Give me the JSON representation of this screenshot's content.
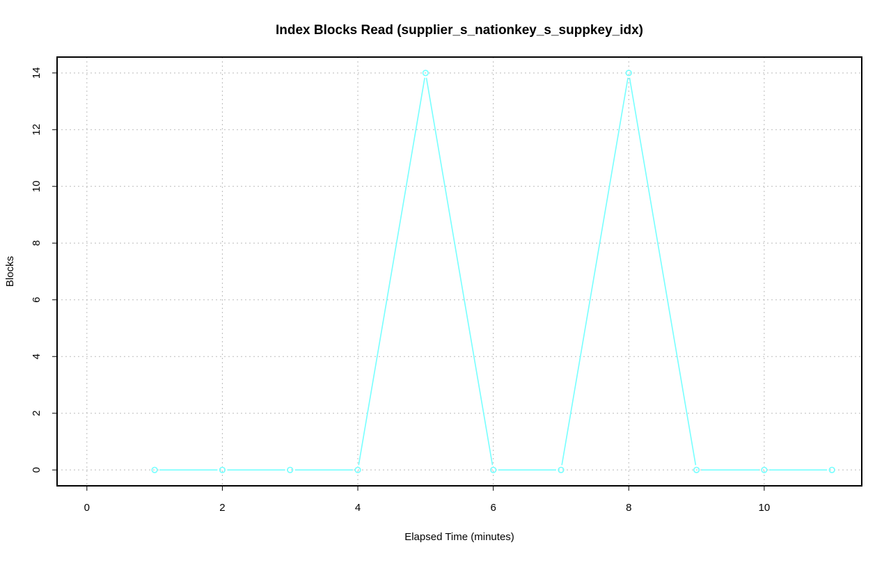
{
  "chart_data": {
    "type": "line",
    "title": "Index Blocks Read (supplier_s_nationkey_s_suppkey_idx)",
    "xlabel": "Elapsed Time (minutes)",
    "ylabel": "Blocks",
    "xlim": [
      0,
      11
    ],
    "ylim": [
      0,
      14
    ],
    "xticks": [
      0,
      2,
      4,
      6,
      8,
      10
    ],
    "yticks": [
      0,
      2,
      4,
      6,
      8,
      10,
      12,
      14
    ],
    "grid": true,
    "series": [
      {
        "color": "#77ffff",
        "x": [
          1,
          2,
          3,
          4,
          5,
          6,
          7,
          8,
          9,
          10,
          11
        ],
        "y": [
          0,
          0,
          0,
          0,
          14,
          0,
          0,
          14,
          0,
          0,
          0
        ]
      }
    ]
  }
}
